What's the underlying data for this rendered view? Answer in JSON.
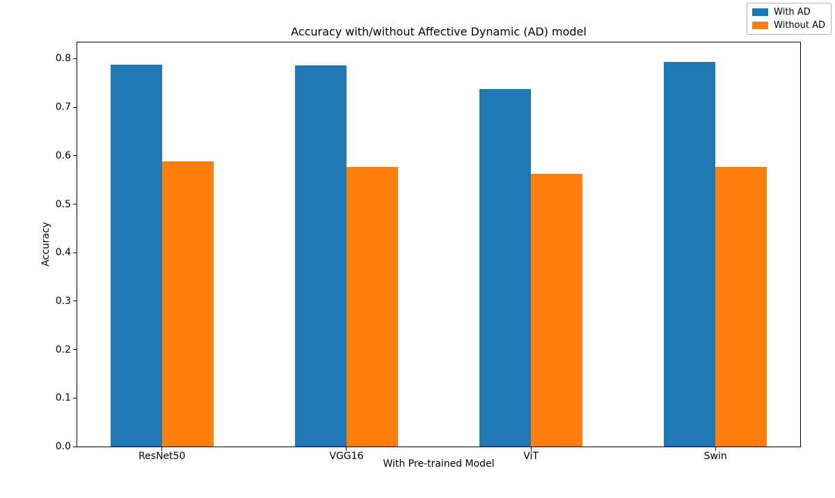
{
  "chart_data": {
    "type": "bar",
    "title": "Accuracy with/without Affective Dynamic (AD) model",
    "xlabel": "With Pre-trained Model",
    "ylabel": "Accuracy",
    "categories": [
      "ResNet50",
      "VGG16",
      "ViT",
      "Swin"
    ],
    "series": [
      {
        "name": "With AD",
        "color": "#1f77b4",
        "values": [
          0.788,
          0.786,
          0.737,
          0.793
        ]
      },
      {
        "name": "Without AD",
        "color": "#ff7f0e",
        "values": [
          0.588,
          0.577,
          0.563,
          0.577
        ]
      }
    ],
    "ylim": [
      0,
      0.8336
    ],
    "yticks": [
      0.0,
      0.1,
      0.2,
      0.3,
      0.4,
      0.5,
      0.6,
      0.7,
      0.8
    ],
    "ytick_labels": [
      "0.0",
      "0.1",
      "0.2",
      "0.3",
      "0.4",
      "0.5",
      "0.6",
      "0.7",
      "0.8"
    ],
    "grid": false,
    "background": "#ffffff",
    "legend": {
      "position": "upper right",
      "entries": [
        "With AD",
        "Without AD"
      ]
    },
    "layout": {
      "bar_width_frac": 0.0711,
      "group_center_fracs": [
        0.1172,
        0.3724,
        0.6276,
        0.8828
      ]
    }
  }
}
